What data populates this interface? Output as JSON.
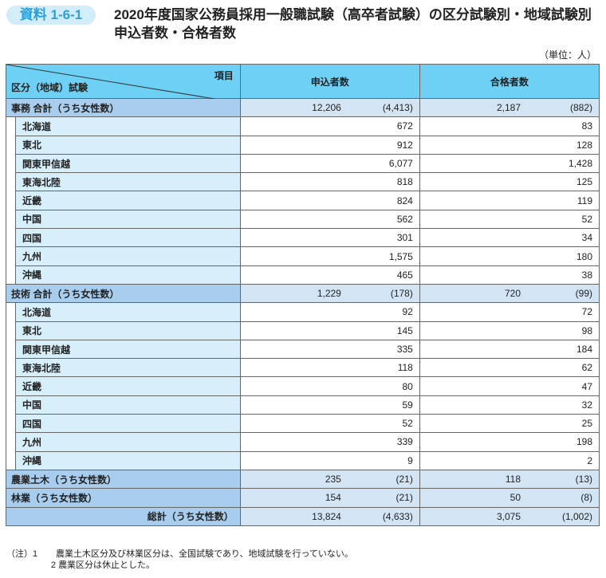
{
  "header": {
    "badge": "資料 1-6-1",
    "title_line1": "2020年度国家公務員採用一般職試験（高卒者試験）の区分試験別・地域試験別",
    "title_line2": "申込者数・合格者数",
    "unit": "（単位：人）"
  },
  "table": {
    "corner_top": "項目",
    "corner_bottom": "区分（地域）試験",
    "col1": "申込者数",
    "col2": "合格者数",
    "groups": [
      {
        "label": "事務 合計（うち女性数）",
        "app": "12,206",
        "app_f": "(4,413)",
        "pass": "2,187",
        "pass_f": "(882)",
        "rows": [
          [
            "北海道",
            "672",
            "83"
          ],
          [
            "東北",
            "912",
            "128"
          ],
          [
            "関東甲信越",
            "6,077",
            "1,428"
          ],
          [
            "東海北陸",
            "818",
            "125"
          ],
          [
            "近畿",
            "824",
            "119"
          ],
          [
            "中国",
            "562",
            "52"
          ],
          [
            "四国",
            "301",
            "34"
          ],
          [
            "九州",
            "1,575",
            "180"
          ],
          [
            "沖縄",
            "465",
            "38"
          ]
        ]
      },
      {
        "label": "技術 合計（うち女性数）",
        "app": "1,229",
        "app_f": "(178)",
        "pass": "720",
        "pass_f": "(99)",
        "rows": [
          [
            "北海道",
            "92",
            "72"
          ],
          [
            "東北",
            "145",
            "98"
          ],
          [
            "関東甲信越",
            "335",
            "184"
          ],
          [
            "東海北陸",
            "118",
            "62"
          ],
          [
            "近畿",
            "80",
            "47"
          ],
          [
            "中国",
            "59",
            "32"
          ],
          [
            "四国",
            "52",
            "25"
          ],
          [
            "九州",
            "339",
            "198"
          ],
          [
            "沖縄",
            "9",
            "2"
          ]
        ]
      },
      {
        "label": "農業土木（うち女性数）",
        "app": "235",
        "app_f": "(21)",
        "pass": "118",
        "pass_f": "(13)",
        "rows": []
      },
      {
        "label": "林業（うち女性数）",
        "app": "154",
        "app_f": "(21)",
        "pass": "50",
        "pass_f": "(8)",
        "rows": []
      }
    ],
    "total": {
      "label": "総計（うち女性数）",
      "app": "13,824",
      "app_f": "(4,633)",
      "pass": "3,075",
      "pass_f": "(1,002)"
    }
  },
  "notes": [
    {
      "prefix": "（注）1",
      "text": "農業土木区分及び林業区分は、全国試験であり、地域試験を行っていない。"
    },
    {
      "prefix": "2",
      "text": "農業区分は休止とした。"
    }
  ]
}
